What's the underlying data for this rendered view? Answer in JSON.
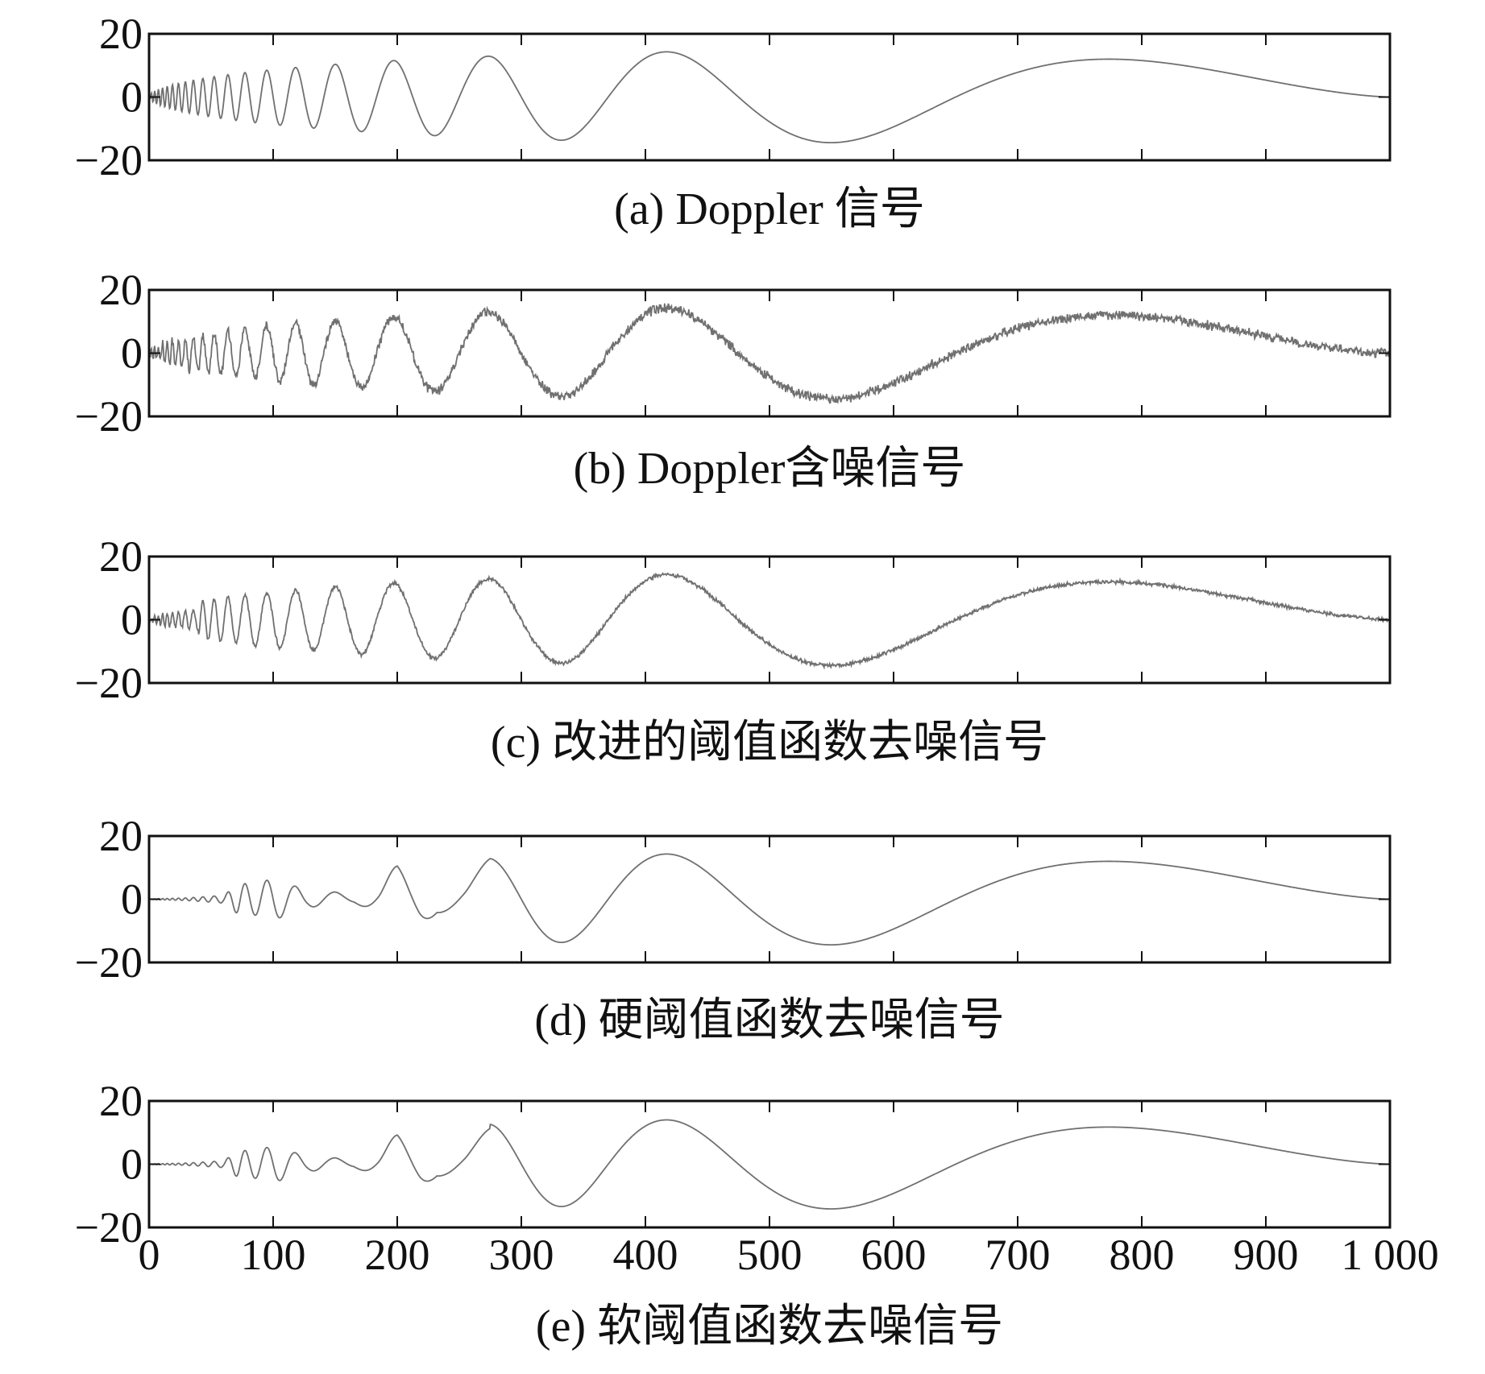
{
  "colors": {
    "line": "#707070",
    "axis": "#111111",
    "background": "#ffffff"
  },
  "x_tick_labels": [
    "0",
    "100",
    "200",
    "300",
    "400",
    "500",
    "600",
    "700",
    "800",
    "900",
    "1 000"
  ],
  "chart_data": [
    {
      "type": "line",
      "caption": "(a) Doppler 信号",
      "signal": "doppler",
      "noise": 0,
      "xlim": [
        0,
        1000
      ],
      "ylim": [
        -20,
        20
      ],
      "y_tick_labels": [
        "20",
        "0",
        "−20"
      ],
      "x_ticks": [
        0,
        100,
        200,
        300,
        400,
        500,
        600,
        700,
        800,
        900,
        1000
      ],
      "grid": false
    },
    {
      "type": "line",
      "caption": "(b) Doppler含噪信号",
      "signal": "doppler_noisy",
      "noise": 1.1,
      "xlim": [
        0,
        1000
      ],
      "ylim": [
        -20,
        20
      ],
      "y_tick_labels": [
        "20",
        "0",
        "−20"
      ],
      "x_ticks": [
        0,
        100,
        200,
        300,
        400,
        500,
        600,
        700,
        800,
        900,
        1000
      ],
      "grid": false
    },
    {
      "type": "line",
      "caption": "(c) 改进的阈值函数去噪信号",
      "signal": "improved_threshold_denoised",
      "noise": 0.45,
      "xlim": [
        0,
        1000
      ],
      "ylim": [
        -20,
        20
      ],
      "y_tick_labels": [
        "20",
        "0",
        "−20"
      ],
      "x_ticks": [
        0,
        100,
        200,
        300,
        400,
        500,
        600,
        700,
        800,
        900,
        1000
      ],
      "grid": false
    },
    {
      "type": "line",
      "caption": "(d) 硬阈值函数去噪信号",
      "signal": "hard_threshold_denoised",
      "noise": 0,
      "xlim": [
        0,
        1000
      ],
      "ylim": [
        -20,
        20
      ],
      "y_tick_labels": [
        "20",
        "0",
        "−20"
      ],
      "x_ticks": [
        0,
        100,
        200,
        300,
        400,
        500,
        600,
        700,
        800,
        900,
        1000
      ],
      "grid": false
    },
    {
      "type": "line",
      "caption": "(e) 软阈值函数去噪信号",
      "signal": "soft_threshold_denoised",
      "noise": 0,
      "xlim": [
        0,
        1000
      ],
      "ylim": [
        -20,
        20
      ],
      "y_tick_labels": [
        "20",
        "0",
        "−20"
      ],
      "x_ticks": [
        0,
        100,
        200,
        300,
        400,
        500,
        600,
        700,
        800,
        900,
        1000
      ],
      "grid": false
    }
  ]
}
